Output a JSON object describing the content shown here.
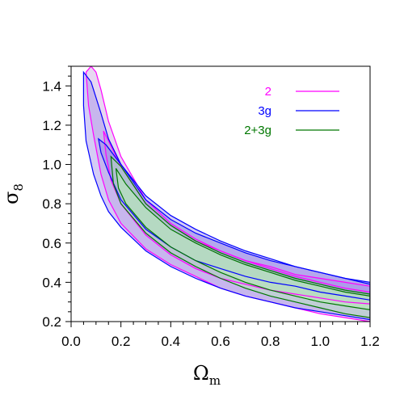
{
  "chart_data": {
    "type": "contour",
    "xlabel": {
      "symbol": "Ω",
      "subscript": "m"
    },
    "ylabel": {
      "symbol": "σ",
      "subscript": "8"
    },
    "xlim": [
      0.0,
      1.2
    ],
    "ylim": [
      0.2,
      1.5
    ],
    "xticks": [
      "0.0",
      "0.2",
      "0.4",
      "0.6",
      "0.8",
      "1.0",
      "1.2"
    ],
    "yticks": [
      "0.2",
      "0.4",
      "0.6",
      "0.8",
      "1.0",
      "1.2",
      "1.4"
    ],
    "xtick_values": [
      0.0,
      0.2,
      0.4,
      0.6,
      0.8,
      1.0,
      1.2
    ],
    "ytick_values": [
      0.2,
      0.4,
      0.6,
      0.8,
      1.0,
      1.2,
      1.4
    ],
    "legend": {
      "placement": "top-right",
      "entries": [
        {
          "label": "2",
          "color": "#ff00ff"
        },
        {
          "label": "3g",
          "color": "#0000ff"
        },
        {
          "label": "2+3g",
          "color": "#007700"
        }
      ]
    },
    "series": [
      {
        "name": "2",
        "color": "#ff00ff",
        "fill": "#c9a6e0",
        "contours": [
          [
            [
              0.06,
              1.47
            ],
            [
              0.08,
              1.5
            ],
            [
              0.1,
              1.47
            ],
            [
              0.12,
              1.38
            ],
            [
              0.15,
              1.22
            ],
            [
              0.2,
              1.04
            ],
            [
              0.3,
              0.82
            ],
            [
              0.4,
              0.7
            ],
            [
              0.5,
              0.62
            ],
            [
              0.6,
              0.56
            ],
            [
              0.7,
              0.51
            ],
            [
              0.8,
              0.47
            ],
            [
              0.9,
              0.43
            ],
            [
              1.0,
              0.4
            ],
            [
              1.1,
              0.37
            ],
            [
              1.2,
              0.35
            ],
            [
              1.2,
              0.2
            ],
            [
              1.1,
              0.22
            ],
            [
              1.0,
              0.24
            ],
            [
              0.9,
              0.27
            ],
            [
              0.8,
              0.3
            ],
            [
              0.7,
              0.33
            ],
            [
              0.6,
              0.37
            ],
            [
              0.5,
              0.43
            ],
            [
              0.4,
              0.49
            ],
            [
              0.3,
              0.57
            ],
            [
              0.2,
              0.7
            ],
            [
              0.15,
              0.82
            ],
            [
              0.12,
              0.95
            ],
            [
              0.09,
              1.15
            ],
            [
              0.07,
              1.3
            ],
            [
              0.06,
              1.47
            ]
          ],
          [
            [
              0.13,
              1.17
            ],
            [
              0.15,
              1.12
            ],
            [
              0.2,
              0.99
            ],
            [
              0.3,
              0.8
            ],
            [
              0.4,
              0.69
            ],
            [
              0.5,
              0.61
            ],
            [
              0.6,
              0.56
            ],
            [
              0.7,
              0.51
            ],
            [
              0.8,
              0.48
            ],
            [
              0.9,
              0.44
            ],
            [
              1.0,
              0.42
            ],
            [
              1.1,
              0.4
            ],
            [
              1.2,
              0.38
            ],
            [
              1.2,
              0.29
            ],
            [
              1.1,
              0.3
            ],
            [
              1.0,
              0.32
            ],
            [
              0.9,
              0.34
            ],
            [
              0.8,
              0.36
            ],
            [
              0.7,
              0.39
            ],
            [
              0.6,
              0.42
            ],
            [
              0.5,
              0.47
            ],
            [
              0.4,
              0.54
            ],
            [
              0.3,
              0.64
            ],
            [
              0.2,
              0.8
            ],
            [
              0.16,
              0.92
            ],
            [
              0.14,
              1.05
            ],
            [
              0.13,
              1.17
            ]
          ]
        ]
      },
      {
        "name": "3g",
        "color": "#0000ff",
        "fill": "#9f8fe8",
        "contours": [
          [
            [
              0.05,
              1.47
            ],
            [
              0.08,
              1.42
            ],
            [
              0.12,
              1.26
            ],
            [
              0.15,
              1.13
            ],
            [
              0.2,
              1.0
            ],
            [
              0.3,
              0.84
            ],
            [
              0.4,
              0.74
            ],
            [
              0.5,
              0.67
            ],
            [
              0.6,
              0.61
            ],
            [
              0.7,
              0.56
            ],
            [
              0.8,
              0.52
            ],
            [
              0.9,
              0.48
            ],
            [
              1.0,
              0.45
            ],
            [
              1.1,
              0.42
            ],
            [
              1.2,
              0.39
            ],
            [
              1.2,
              0.21
            ],
            [
              1.1,
              0.23
            ],
            [
              1.0,
              0.25
            ],
            [
              0.9,
              0.27
            ],
            [
              0.8,
              0.3
            ],
            [
              0.7,
              0.33
            ],
            [
              0.6,
              0.37
            ],
            [
              0.5,
              0.42
            ],
            [
              0.4,
              0.48
            ],
            [
              0.3,
              0.56
            ],
            [
              0.25,
              0.62
            ],
            [
              0.2,
              0.68
            ],
            [
              0.15,
              0.76
            ],
            [
              0.12,
              0.84
            ],
            [
              0.09,
              0.95
            ],
            [
              0.06,
              1.12
            ],
            [
              0.05,
              1.3
            ],
            [
              0.05,
              1.47
            ]
          ],
          [
            [
              0.11,
              1.13
            ],
            [
              0.14,
              1.1
            ],
            [
              0.2,
              1.0
            ],
            [
              0.3,
              0.82
            ],
            [
              0.4,
              0.72
            ],
            [
              0.5,
              0.65
            ],
            [
              0.6,
              0.6
            ],
            [
              0.7,
              0.55
            ],
            [
              0.8,
              0.51
            ],
            [
              0.9,
              0.48
            ],
            [
              1.0,
              0.45
            ],
            [
              1.1,
              0.42
            ],
            [
              1.2,
              0.4
            ],
            [
              1.2,
              0.31
            ],
            [
              1.1,
              0.33
            ],
            [
              1.0,
              0.35
            ],
            [
              0.9,
              0.38
            ],
            [
              0.8,
              0.4
            ],
            [
              0.7,
              0.43
            ],
            [
              0.6,
              0.47
            ],
            [
              0.5,
              0.51
            ],
            [
              0.4,
              0.58
            ],
            [
              0.3,
              0.67
            ],
            [
              0.2,
              0.82
            ],
            [
              0.15,
              0.96
            ],
            [
              0.12,
              1.06
            ],
            [
              0.11,
              1.13
            ]
          ]
        ]
      },
      {
        "name": "2+3g",
        "color": "#007700",
        "fill": "#b8ebb8",
        "contours": [
          [
            [
              0.16,
              1.04
            ],
            [
              0.2,
              0.99
            ],
            [
              0.3,
              0.8
            ],
            [
              0.4,
              0.69
            ],
            [
              0.5,
              0.61
            ],
            [
              0.6,
              0.55
            ],
            [
              0.7,
              0.5
            ],
            [
              0.8,
              0.46
            ],
            [
              0.9,
              0.42
            ],
            [
              1.0,
              0.39
            ],
            [
              1.1,
              0.36
            ],
            [
              1.2,
              0.34
            ],
            [
              1.2,
              0.22
            ],
            [
              1.1,
              0.24
            ],
            [
              1.0,
              0.27
            ],
            [
              0.9,
              0.3
            ],
            [
              0.8,
              0.33
            ],
            [
              0.7,
              0.37
            ],
            [
              0.6,
              0.42
            ],
            [
              0.5,
              0.48
            ],
            [
              0.4,
              0.55
            ],
            [
              0.3,
              0.65
            ],
            [
              0.2,
              0.8
            ],
            [
              0.17,
              0.9
            ],
            [
              0.16,
              1.04
            ]
          ],
          [
            [
              0.18,
              0.98
            ],
            [
              0.22,
              0.9
            ],
            [
              0.3,
              0.78
            ],
            [
              0.4,
              0.67
            ],
            [
              0.5,
              0.6
            ],
            [
              0.6,
              0.54
            ],
            [
              0.7,
              0.49
            ],
            [
              0.8,
              0.45
            ],
            [
              0.9,
              0.41
            ],
            [
              1.0,
              0.38
            ],
            [
              1.1,
              0.35
            ],
            [
              1.2,
              0.33
            ],
            [
              1.2,
              0.26
            ],
            [
              1.1,
              0.28
            ],
            [
              1.0,
              0.3
            ],
            [
              0.9,
              0.33
            ],
            [
              0.8,
              0.36
            ],
            [
              0.7,
              0.4
            ],
            [
              0.6,
              0.45
            ],
            [
              0.5,
              0.51
            ],
            [
              0.4,
              0.58
            ],
            [
              0.3,
              0.68
            ],
            [
              0.22,
              0.8
            ],
            [
              0.19,
              0.88
            ],
            [
              0.18,
              0.98
            ]
          ]
        ]
      }
    ]
  }
}
